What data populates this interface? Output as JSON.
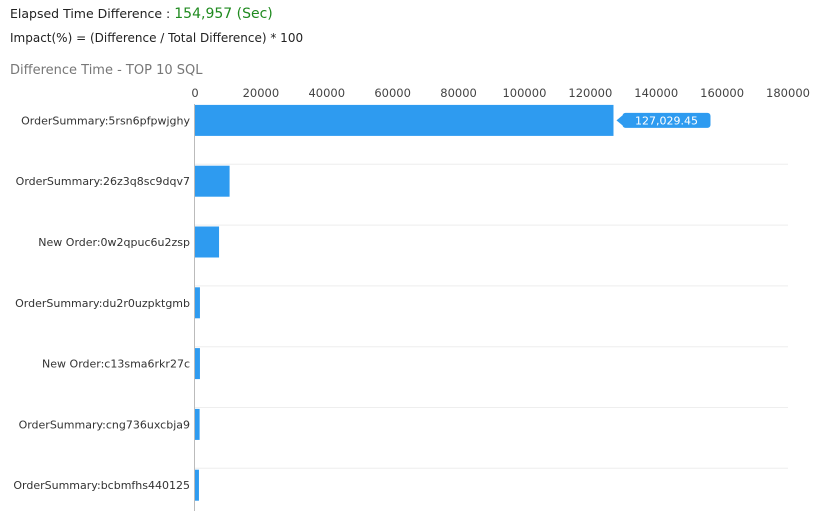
{
  "header": {
    "elapsed_label": "Elapsed Time Difference :",
    "elapsed_value": "154,957 (Sec)",
    "impact_formula": "Impact(%) = (Difference / Total Difference) * 100"
  },
  "colors": {
    "bar": "#2e9bf0",
    "value_text": "#1f8a1f",
    "grid": "#eeeeee",
    "axis": "#bbbbbb"
  },
  "chart_data": {
    "type": "bar",
    "orientation": "horizontal",
    "title": "Difference Time - TOP 10 SQL",
    "categories": [
      "OrderSummary:5rsn6pfpwjghy",
      "OrderSummary:26z3q8sc9dqv7",
      "New Order:0w2qpuc6u2zsp",
      "OrderSummary:du2r0uzpktgmb",
      "New Order:c13sma6rkr27c",
      "OrderSummary:cng736uxcbja9",
      "OrderSummary:bcbmfhs440125"
    ],
    "values": [
      127029.45,
      10500,
      7300,
      1500,
      1500,
      1400,
      1200
    ],
    "data_labels": [
      "127,029.45",
      "",
      "",
      "",
      "",
      "",
      ""
    ],
    "xlim": [
      0,
      180000
    ],
    "xticks": [
      "0",
      "20000",
      "40000",
      "60000",
      "80000",
      "100000",
      "120000",
      "140000",
      "160000",
      "180000"
    ],
    "xtick_values": [
      0,
      20000,
      40000,
      60000,
      80000,
      100000,
      120000,
      140000,
      160000,
      180000
    ],
    "xaxis_position": "top",
    "grid": true
  }
}
